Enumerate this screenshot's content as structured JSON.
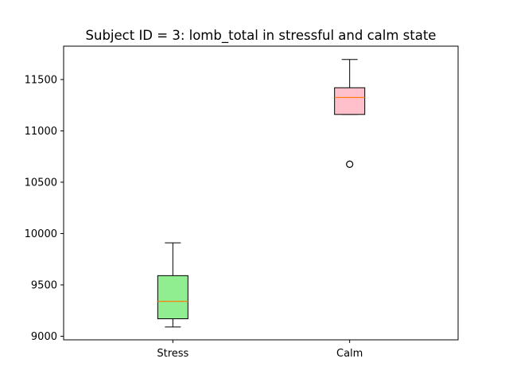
{
  "chart_data": {
    "type": "box",
    "title": "Subject ID = 3: lomb_total in stressful and calm state",
    "xlabel": "",
    "ylabel": "",
    "categories": [
      "Stress",
      "Calm"
    ],
    "ylim": [
      8965,
      11825
    ],
    "yticks": [
      9000,
      9500,
      10000,
      10500,
      11000,
      11500
    ],
    "grid": false,
    "boxes": [
      {
        "label": "Stress",
        "whisker_low": 9090,
        "q1": 9170,
        "median": 9340,
        "q3": 9590,
        "whisker_high": 9910,
        "outliers": [],
        "fill": "#90ee90"
      },
      {
        "label": "Calm",
        "whisker_low": 11160,
        "q1": 11160,
        "median": 11325,
        "q3": 11420,
        "whisker_high": 11695,
        "outliers": [
          10675
        ],
        "fill": "#ffc0cb"
      }
    ],
    "colors": {
      "median": "#ff7f0e",
      "box_edge": "#000000",
      "whisker": "#000000",
      "outlier_edge": "#000000"
    }
  }
}
